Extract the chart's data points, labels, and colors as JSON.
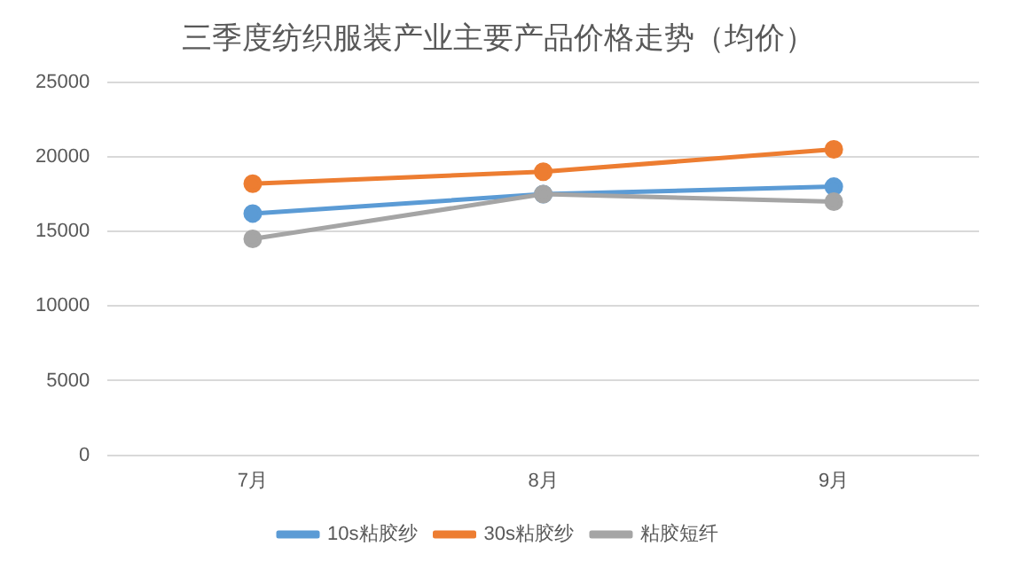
{
  "chart_data": {
    "type": "line",
    "title": "三季度纺织服装产业主要产品价格走势（均价）",
    "categories": [
      "7月",
      "8月",
      "9月"
    ],
    "series": [
      {
        "name": "10s粘胶纱",
        "color": "#5b9bd5",
        "values": [
          16200,
          17500,
          18000
        ]
      },
      {
        "name": "30s粘胶纱",
        "color": "#ed7d31",
        "values": [
          18200,
          19000,
          20500
        ]
      },
      {
        "name": "粘胶短纤",
        "color": "#a5a5a5",
        "values": [
          14500,
          17500,
          17000
        ]
      }
    ],
    "ylim": [
      0,
      25000
    ],
    "yticks": [
      0,
      5000,
      10000,
      15000,
      20000,
      25000
    ],
    "grid": "y",
    "legend": "bottom",
    "marker": "circle",
    "line_style": "solid"
  }
}
